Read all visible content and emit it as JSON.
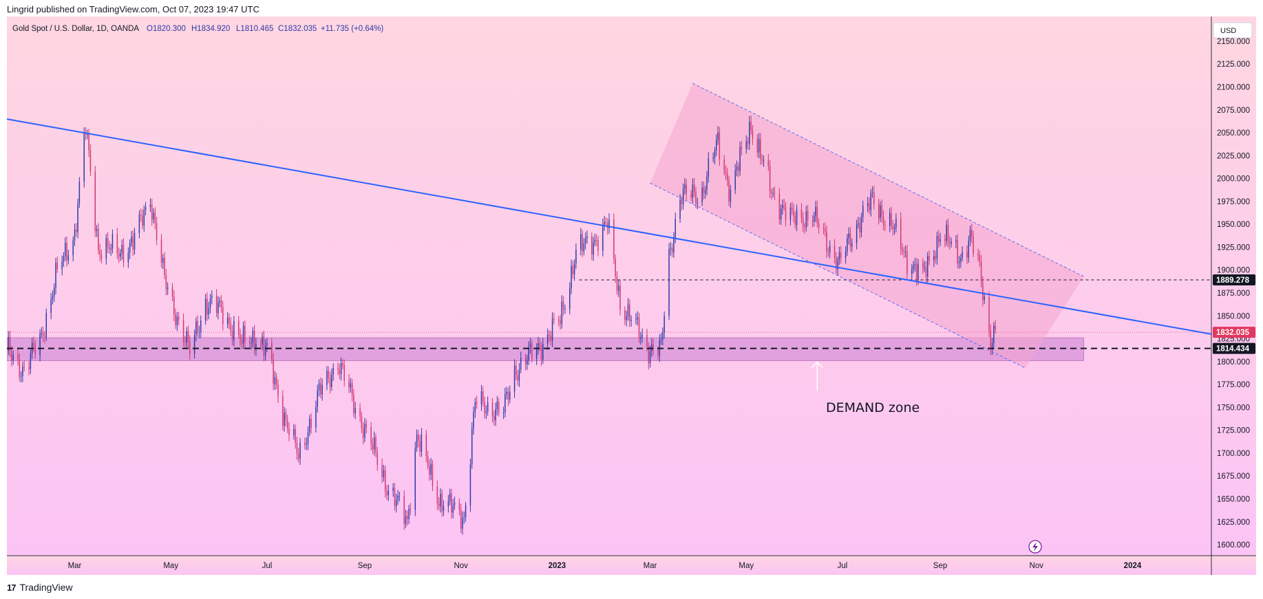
{
  "header": {
    "published": "Lingrid published on TradingView.com, Oct 07, 2023 19:47 UTC"
  },
  "footer": {
    "logo_icon": "tradingview-logo-icon",
    "brand": "TradingView"
  },
  "chart_data": {
    "type": "candlestick",
    "legend": {
      "symbol": "Gold Spot / U.S. Dollar, 1D, OANDA",
      "open": "O1820.300",
      "high": "H1834.920",
      "low": "L1810.465",
      "close": "C1832.035",
      "change": "+11.735 (+0.64%)"
    },
    "currency": "USD",
    "ylim": [
      1588,
      2177
    ],
    "y_ticks": [
      1600,
      1625,
      1650,
      1675,
      1700,
      1725,
      1750,
      1775,
      1800,
      1825,
      1850,
      1875,
      1900,
      1925,
      1950,
      1975,
      2000,
      2025,
      2050,
      2075,
      2100,
      2125,
      2150
    ],
    "x_ticks": [
      {
        "label": "Mar",
        "date": "2022-03-01",
        "bold": false
      },
      {
        "label": "May",
        "date": "2022-05-01",
        "bold": false
      },
      {
        "label": "Jul",
        "date": "2022-07-01",
        "bold": false
      },
      {
        "label": "Sep",
        "date": "2022-09-01",
        "bold": false
      },
      {
        "label": "Nov",
        "date": "2022-11-01",
        "bold": false
      },
      {
        "label": "2023",
        "date": "2023-01-01",
        "bold": true
      },
      {
        "label": "Mar",
        "date": "2023-03-01",
        "bold": false
      },
      {
        "label": "May",
        "date": "2023-05-01",
        "bold": false
      },
      {
        "label": "Jul",
        "date": "2023-07-01",
        "bold": false
      },
      {
        "label": "Sep",
        "date": "2023-09-01",
        "bold": false
      },
      {
        "label": "Nov",
        "date": "2023-11-01",
        "bold": false
      },
      {
        "label": "2024",
        "date": "2024-01-01",
        "bold": true
      }
    ],
    "x_range": [
      "2022-01-17",
      "2024-02-20"
    ],
    "price_path": [
      [
        "2022-01-18",
        1812
      ],
      [
        "2022-01-28",
        1790
      ],
      [
        "2022-02-08",
        1828
      ],
      [
        "2022-02-18",
        1898
      ],
      [
        "2022-03-01",
        1940
      ],
      [
        "2022-03-08",
        2055
      ],
      [
        "2022-03-16",
        1925
      ],
      [
        "2022-03-29",
        1920
      ],
      [
        "2022-04-07",
        1930
      ],
      [
        "2022-04-18",
        1980
      ],
      [
        "2022-04-27",
        1888
      ],
      [
        "2022-05-13",
        1810
      ],
      [
        "2022-05-23",
        1865
      ],
      [
        "2022-06-03",
        1855
      ],
      [
        "2022-06-15",
        1820
      ],
      [
        "2022-06-24",
        1828
      ],
      [
        "2022-07-01",
        1810
      ],
      [
        "2022-07-13",
        1735
      ],
      [
        "2022-07-21",
        1695
      ],
      [
        "2022-08-03",
        1765
      ],
      [
        "2022-08-15",
        1800
      ],
      [
        "2022-08-25",
        1755
      ],
      [
        "2022-09-05",
        1710
      ],
      [
        "2022-09-15",
        1665
      ],
      [
        "2022-09-28",
        1625
      ],
      [
        "2022-10-04",
        1720
      ],
      [
        "2022-10-18",
        1650
      ],
      [
        "2022-11-03",
        1630
      ],
      [
        "2022-11-10",
        1755
      ],
      [
        "2022-11-28",
        1745
      ],
      [
        "2022-12-05",
        1790
      ],
      [
        "2022-12-20",
        1815
      ],
      [
        "2023-01-03",
        1845
      ],
      [
        "2023-01-13",
        1920
      ],
      [
        "2023-01-26",
        1935
      ],
      [
        "2023-02-02",
        1950
      ],
      [
        "2023-02-10",
        1865
      ],
      [
        "2023-02-28",
        1815
      ],
      [
        "2023-03-08",
        1812
      ],
      [
        "2023-03-13",
        1915
      ],
      [
        "2023-03-20",
        1980
      ],
      [
        "2023-04-03",
        1985
      ],
      [
        "2023-04-13",
        2040
      ],
      [
        "2023-04-21",
        1985
      ],
      [
        "2023-05-04",
        2060
      ],
      [
        "2023-05-17",
        1985
      ],
      [
        "2023-05-30",
        1955
      ],
      [
        "2023-06-12",
        1960
      ],
      [
        "2023-06-23",
        1925
      ],
      [
        "2023-06-29",
        1907
      ],
      [
        "2023-07-13",
        1960
      ],
      [
        "2023-07-20",
        1975
      ],
      [
        "2023-08-01",
        1950
      ],
      [
        "2023-08-10",
        1915
      ],
      [
        "2023-08-21",
        1892
      ],
      [
        "2023-09-01",
        1940
      ],
      [
        "2023-09-14",
        1915
      ],
      [
        "2023-09-20",
        1935
      ],
      [
        "2023-09-26",
        1900
      ],
      [
        "2023-10-03",
        1825
      ],
      [
        "2023-10-06",
        1832
      ]
    ],
    "annotations": {
      "long_trendline": {
        "from": [
          "2022-01-17",
          2065
        ],
        "to": [
          "2024-02-20",
          1830
        ]
      },
      "channel_upper": {
        "from": [
          "2023-03-28",
          2104
        ],
        "to": [
          "2023-12-01",
          1893
        ]
      },
      "channel_lower": {
        "from": [
          "2023-03-01",
          1995
        ],
        "to": [
          "2023-10-25",
          1793
        ]
      },
      "channel_zone": {
        "from": [
          "2023-03-28",
          2104
        ],
        "to": [
          "2023-12-01",
          1893
        ],
        "to_lower": [
          "2023-10-25",
          1793
        ],
        "from_lower": [
          "2023-03-01",
          1995
        ],
        "color": "#f4a6cf"
      },
      "demand_zone": {
        "from": "2022-01-17",
        "to": "2023-12-01",
        "high": 1826,
        "low": 1801,
        "color": "#d996d9"
      },
      "support_line": {
        "price": 1814.434,
        "label": "1814.434"
      },
      "resistance_line": {
        "price": 1889.278,
        "label": "1889.278",
        "from": "2023-01-15"
      },
      "current_price": {
        "price": 1832.035,
        "label": "1832.035"
      },
      "demand_label": "DEMAND zone",
      "demand_arrow": {
        "date": "2023-06-15",
        "from_price": 1768,
        "to_price": 1801
      }
    },
    "colors": {
      "up": "#2f3aa8",
      "down": "#d2386f",
      "trendline": "#2962ff",
      "price_tag": "#e0385f",
      "level_tag": "#131722",
      "bg_top": "#ffd6e1",
      "bg_bottom": "#fcc4f5"
    }
  }
}
